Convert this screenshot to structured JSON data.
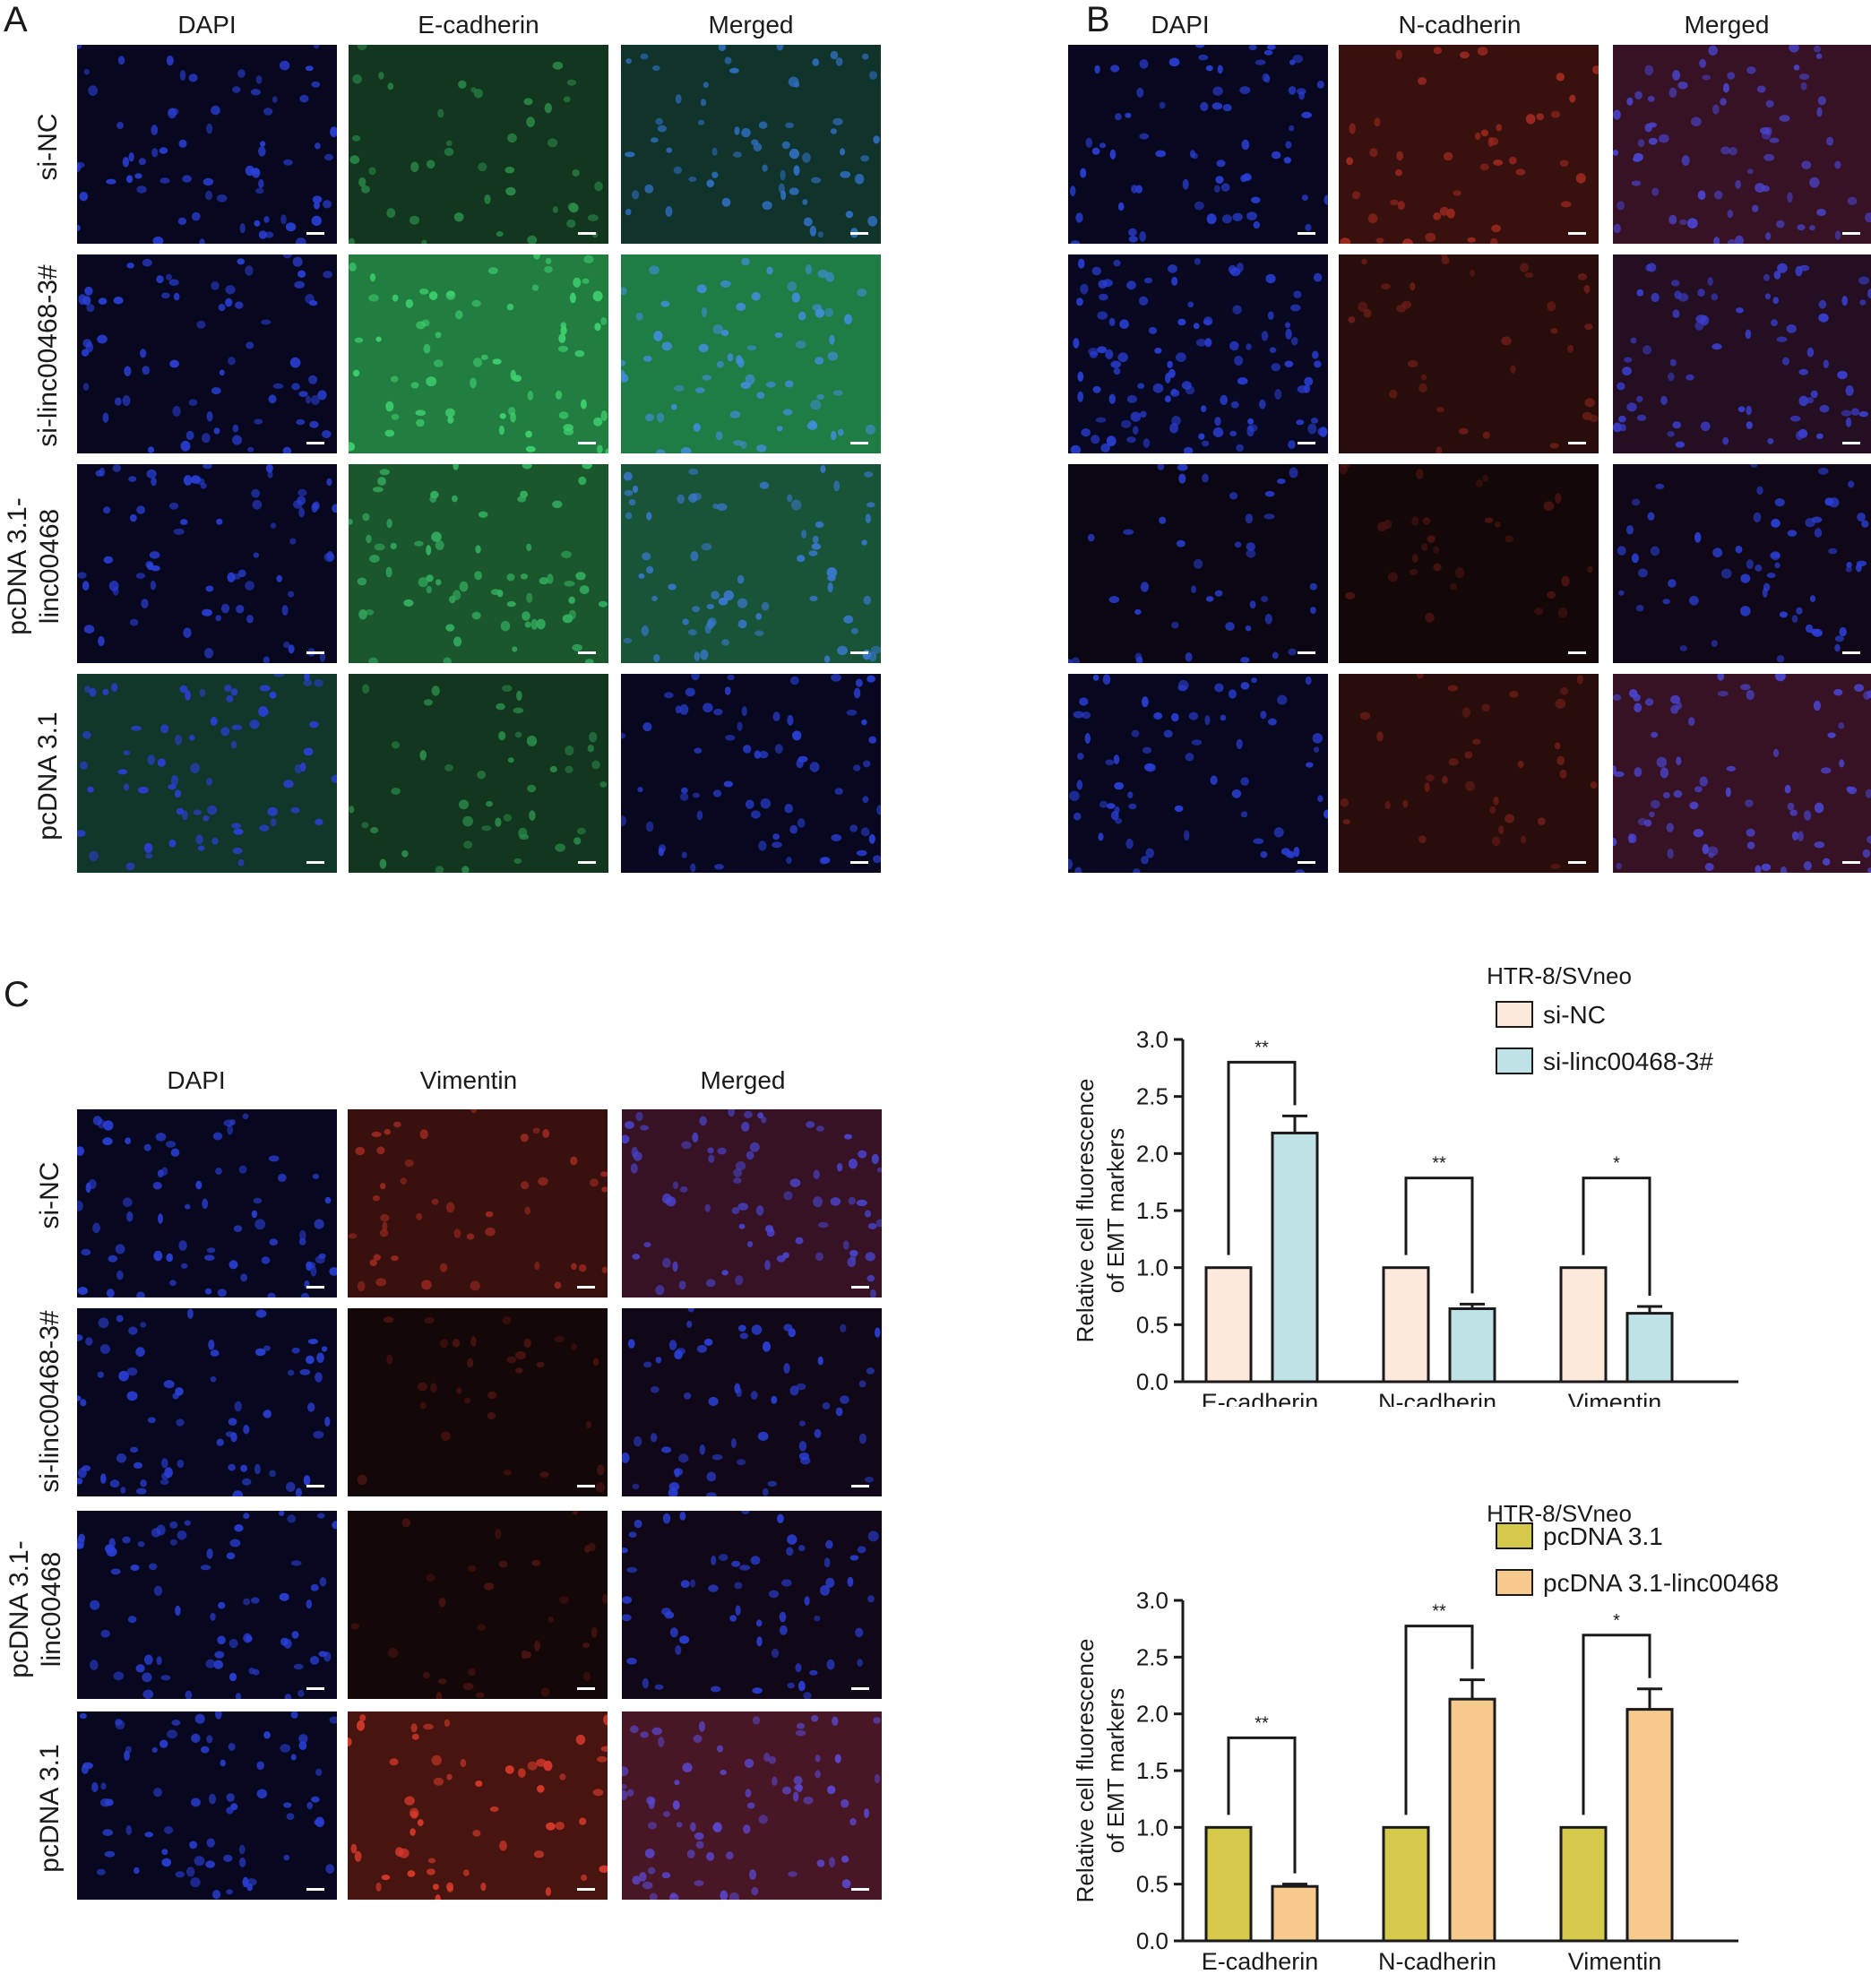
{
  "panels": {
    "A": {
      "label": "A",
      "columns": [
        "DAPI",
        "E-cadherin",
        "Merged"
      ],
      "rows": [
        "si-NC",
        "si-linc00468-3#",
        "pcDNA 3.1-\nlinc00468",
        "pcDNA 3.1"
      ],
      "tiles": [
        [
          "dapi",
          "egreen-dim",
          "merge-green-dim"
        ],
        [
          "dapi",
          "egreen-bright",
          "merge-green-bright"
        ],
        [
          "dapi",
          "egreen-mid",
          "merge-green-mid"
        ],
        [
          "dapi-green",
          "egreen-dim",
          "dapi"
        ]
      ]
    },
    "B": {
      "label": "B",
      "columns": [
        "DAPI",
        "N-cadherin",
        "Merged"
      ],
      "tiles": [
        [
          "dapi",
          "red-mid",
          "merge-red-mid"
        ],
        [
          "dapi-dense",
          "red-dim",
          "merge-red-dim"
        ],
        [
          "dapi-sparse",
          "red-faint",
          "merge-red-faint"
        ],
        [
          "dapi",
          "red-dim",
          "merge-red-mid"
        ]
      ]
    },
    "C": {
      "label": "C",
      "columns": [
        "DAPI",
        "Vimentin",
        "Merged"
      ],
      "rows": [
        "si-NC",
        "si-linc00468-3#",
        "pcDNA 3.1-\nlinc00468",
        "pcDNA 3.1"
      ],
      "tiles": [
        [
          "dapi",
          "red-mid",
          "merge-red-mid"
        ],
        [
          "dapi",
          "red-faint",
          "merge-red-faint"
        ],
        [
          "dapi",
          "red-faint",
          "merge-red-faint"
        ],
        [
          "dapi",
          "red-bright",
          "merge-red-bright"
        ]
      ]
    }
  },
  "colors": {
    "dapi": "#2a3fd6",
    "green": "#2fbf5a",
    "red": "#d93a2a",
    "bar_si_nc": "#fde8dc",
    "bar_si_linc": "#bfe2e7",
    "bar_pcdna": "#d4c94a",
    "bar_pcdna_linc": "#f6c98c"
  },
  "chart_data": [
    {
      "type": "bar",
      "title": "HTR-8/SVneo",
      "ylabel": "Relative cell fluorescence\nof EMT markers",
      "xlabel": "",
      "categories": [
        "E-cadherin",
        "N-cadherin",
        "Vimentin"
      ],
      "ylim": [
        0,
        3.0
      ],
      "yticks": [
        "0.0",
        "0.5",
        "1.0",
        "1.5",
        "2.0",
        "2.5",
        "3.0"
      ],
      "series": [
        {
          "name": "si-NC",
          "values": [
            1.0,
            1.0,
            1.0
          ],
          "errors": [
            0,
            0,
            0
          ],
          "color": "#fde8dc"
        },
        {
          "name": "si-linc00468-3#",
          "values": [
            2.18,
            0.64,
            0.6
          ],
          "errors": [
            0.15,
            0.04,
            0.06
          ],
          "color": "#bfe2e7"
        }
      ],
      "significance": [
        "**",
        "**",
        "*"
      ],
      "legend": "top-right"
    },
    {
      "type": "bar",
      "title": "HTR-8/SVneo",
      "ylabel": "Relative cell fluorescence\nof EMT markers",
      "xlabel": "",
      "categories": [
        "E-cadherin",
        "N-cadherin",
        "Vimentin"
      ],
      "ylim": [
        0,
        3.0
      ],
      "yticks": [
        "0.0",
        "0.5",
        "1.0",
        "1.5",
        "2.0",
        "2.5",
        "3.0"
      ],
      "series": [
        {
          "name": "pcDNA 3.1",
          "values": [
            1.0,
            1.0,
            1.0
          ],
          "errors": [
            0,
            0,
            0
          ],
          "color": "#d4c94a"
        },
        {
          "name": "pcDNA 3.1-linc00468",
          "values": [
            0.48,
            2.13,
            2.04
          ],
          "errors": [
            0.02,
            0.17,
            0.18
          ],
          "color": "#f6c98c"
        }
      ],
      "significance": [
        "**",
        "**",
        "*"
      ],
      "legend": "top-right"
    }
  ]
}
